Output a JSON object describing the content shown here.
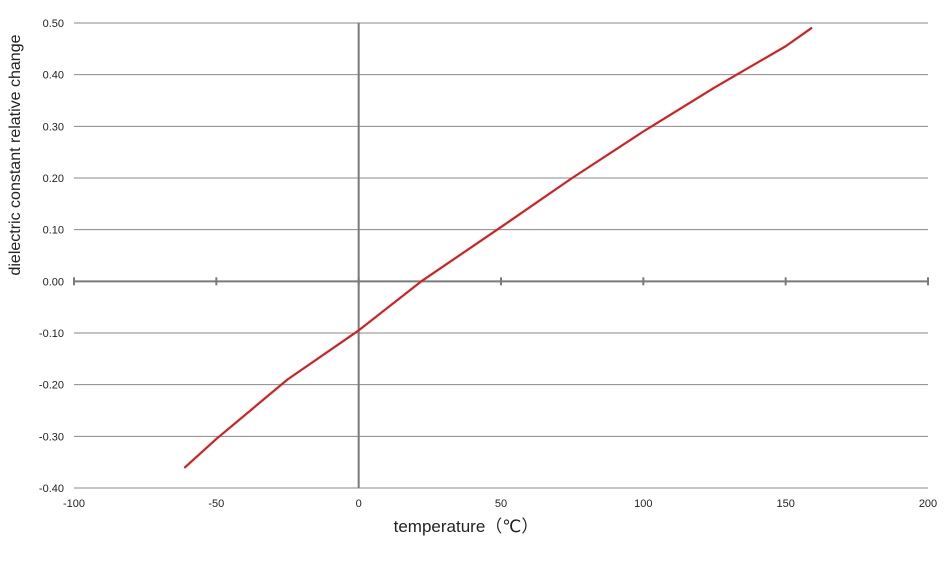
{
  "chart_data": {
    "type": "line",
    "title": "",
    "xlabel": "temperature（℃）",
    "ylabel": "dielectric constant relative change",
    "xlim": [
      -100,
      200
    ],
    "ylim": [
      -0.4,
      0.5
    ],
    "x_ticks": [
      "-100",
      "-50",
      "0",
      "50",
      "100",
      "150",
      "200"
    ],
    "y_ticks": [
      "0.50",
      "0.40",
      "0.30",
      "0.20",
      "0.10",
      "0.00",
      "-0.10",
      "-0.20",
      "-0.30",
      "-0.40"
    ],
    "grid": "horizontal",
    "legend": "none",
    "line_color": "#d42020",
    "series": [
      {
        "x": [
          -61,
          -50,
          -25,
          0,
          22,
          50,
          75,
          100,
          125,
          150,
          159
        ],
        "y": [
          -0.36,
          -0.305,
          -0.19,
          -0.095,
          0.0,
          0.105,
          0.2,
          0.29,
          0.375,
          0.455,
          0.49
        ]
      }
    ]
  }
}
